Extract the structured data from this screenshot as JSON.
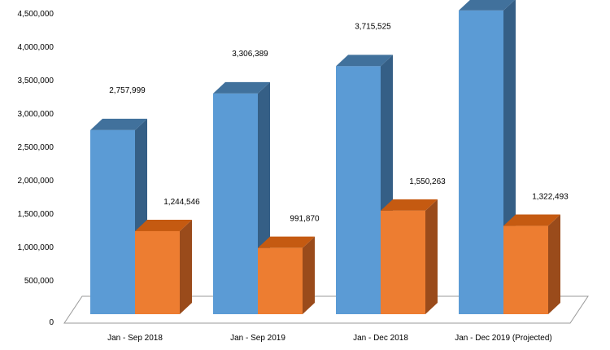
{
  "chart_data": {
    "type": "bar",
    "style": "3d-clustered-column",
    "categories": [
      "Jan - Sep 2018",
      "Jan - Sep 2019",
      "Jan - Dec 2018",
      "Jan - Dec 2019 (Projected)"
    ],
    "series": [
      {
        "values": [
          2757999,
          3306389,
          3715525,
          4550000
        ],
        "data_labels": [
          "2,757,999",
          "3,306,389",
          "3,715,525",
          ""
        ]
      },
      {
        "values": [
          1244546,
          991870,
          1550263,
          1322493
        ],
        "data_labels": [
          "1,244,546",
          "991,870",
          "1,550,263",
          "1,322,493"
        ]
      }
    ],
    "y_ticks": [
      "0",
      "500,000",
      "1,000,000",
      "1,500,000",
      "2,000,000",
      "2,500,000",
      "3,000,000",
      "3,500,000",
      "4,000,000",
      "4,500,000"
    ],
    "ylim": [
      0,
      4500000
    ],
    "grid": false,
    "legend": "none",
    "colors": {
      "series_1": {
        "front": "#5B9BD5",
        "top": "#41719C",
        "side": "#355F86"
      },
      "series_2": {
        "front": "#ED7D31",
        "top": "#C55A11",
        "side": "#9A4B1B"
      },
      "floor": "#9A9A9A"
    }
  }
}
